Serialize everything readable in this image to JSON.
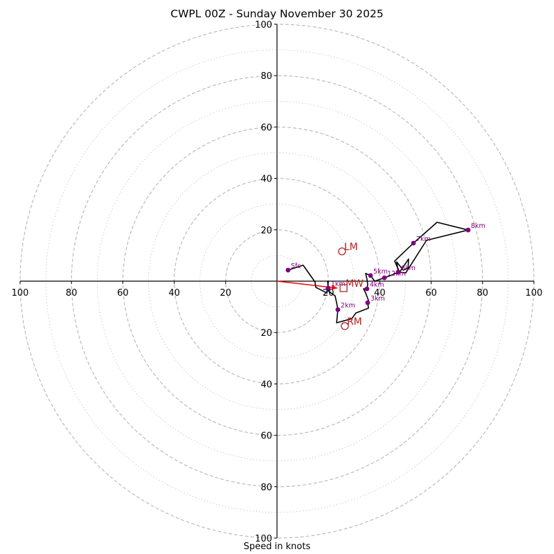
{
  "chart_data": {
    "type": "line",
    "subtype": "hodograph",
    "title": "CWPL 00Z - Sunday November 30 2025",
    "xlabel": "Speed in knots",
    "ylabel": "",
    "xlim": [
      -100,
      100
    ],
    "ylim": [
      -100,
      100
    ],
    "x_ticks": [
      100,
      80,
      60,
      40,
      20,
      20,
      40,
      60,
      80,
      100
    ],
    "x_tick_values": [
      -100,
      -80,
      -60,
      -40,
      -20,
      20,
      40,
      60,
      80,
      100
    ],
    "y_ticks": [
      100,
      80,
      60,
      40,
      20,
      20,
      40,
      60,
      80,
      100
    ],
    "y_tick_values": [
      100,
      80,
      60,
      40,
      20,
      -20,
      -40,
      -60,
      -80,
      -100
    ],
    "rings_dashed": [
      20,
      40,
      60,
      80,
      100
    ],
    "rings_dotted": [
      10,
      30,
      50,
      70,
      90
    ],
    "grid": true,
    "colors": {
      "trace": "#000000",
      "height_marker": "#800080",
      "motion": "#b22222",
      "mean_wind_arrow": "#ff0000",
      "ring": "#bbbbbb"
    },
    "trace": [
      [
        4.3,
        4.3
      ],
      [
        10.2,
        6.2
      ],
      [
        14.8,
        -0.3
      ],
      [
        15.1,
        -2.4
      ],
      [
        19.4,
        -4.6
      ],
      [
        19.9,
        -2.7
      ],
      [
        19.7,
        0.0
      ],
      [
        20.2,
        -4.0
      ],
      [
        22.6,
        -5.7
      ],
      [
        23.2,
        -8.4
      ],
      [
        23.7,
        -11.1
      ],
      [
        23.2,
        -16.2
      ],
      [
        29.1,
        -14.6
      ],
      [
        30.7,
        -12.4
      ],
      [
        35.6,
        -10.5
      ],
      [
        35.3,
        -8.4
      ],
      [
        35.6,
        -7.5
      ],
      [
        34.5,
        -4.6
      ],
      [
        33.7,
        -3.0
      ],
      [
        35.0,
        -3.0
      ],
      [
        35.3,
        -1.3
      ],
      [
        35.0,
        0.8
      ],
      [
        34.5,
        3.0
      ],
      [
        36.4,
        2.2
      ],
      [
        38.0,
        0.0
      ],
      [
        41.8,
        1.3
      ],
      [
        44.7,
        2.4
      ],
      [
        47.2,
        3.5
      ],
      [
        46.6,
        7.5
      ],
      [
        49.1,
        4.3
      ],
      [
        51.0,
        5.1
      ],
      [
        51.2,
        8.6
      ],
      [
        47.7,
        3.5
      ],
      [
        45.8,
        7.8
      ],
      [
        46.6,
        8.6
      ],
      [
        53.1,
        14.8
      ],
      [
        62.3,
        22.9
      ],
      [
        74.4,
        19.9
      ],
      [
        58.2,
        15.9
      ],
      [
        50.1,
        3.2
      ],
      [
        47.2,
        3.5
      ]
    ],
    "height_markers": [
      {
        "label": "Sfc",
        "u": 4.3,
        "v": 4.3
      },
      {
        "label": "1km",
        "u": 19.9,
        "v": -2.7
      },
      {
        "label": "2km",
        "u": 23.7,
        "v": -11.1
      },
      {
        "label": "3km",
        "u": 35.3,
        "v": -8.4
      },
      {
        "label": "4km",
        "u": 35.0,
        "v": -3.0
      },
      {
        "label": "5km",
        "u": 36.4,
        "v": 2.2
      },
      {
        "label": "12km",
        "u": 41.8,
        "v": 1.3
      },
      {
        "label": "6km",
        "u": 47.2,
        "v": 3.5
      },
      {
        "label": "7km",
        "u": 53.1,
        "v": 14.8
      },
      {
        "label": "8km",
        "u": 74.4,
        "v": 19.9
      }
    ],
    "storm_motions": [
      {
        "label": "LM",
        "marker": "circle",
        "u": 25.3,
        "v": 11.6
      },
      {
        "label": "RM",
        "marker": "circle",
        "u": 26.4,
        "v": -17.5
      },
      {
        "label": "MW",
        "marker": "square",
        "u": 25.9,
        "v": -2.7
      }
    ],
    "mean_wind_arrow": {
      "from": [
        0,
        0
      ],
      "to": [
        23.5,
        -2.7
      ]
    }
  }
}
